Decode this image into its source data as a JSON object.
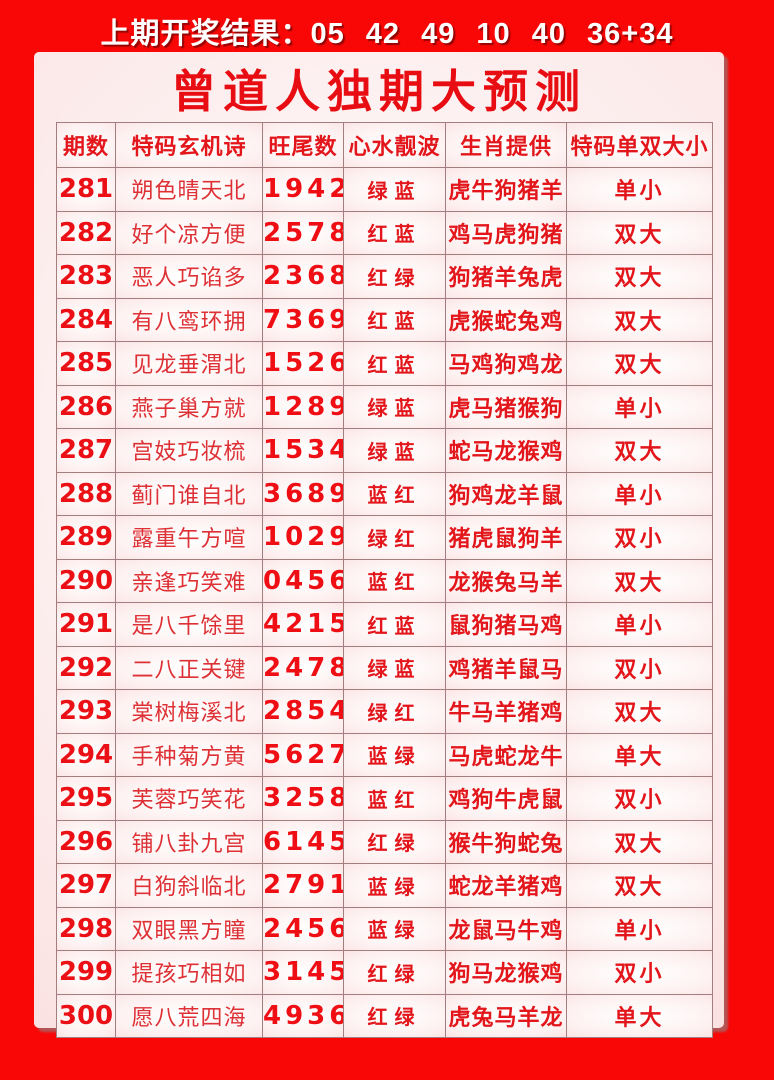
{
  "header": {
    "result_text": "上期开奖结果：05 42 49 10 40 36+34"
  },
  "panel": {
    "title": "曾道人独期大预测"
  },
  "colors": {
    "background_red": "#f90707",
    "text_red": "#e2161b",
    "panel_pink": "#f6d3d3",
    "header_text_white": "#ffffff",
    "table_border": "#a27e7e"
  },
  "table": {
    "columns": [
      "期数",
      "特码玄机诗",
      "旺尾数",
      "心水靓波",
      "生肖提供",
      "特码单双大小"
    ],
    "rows": [
      {
        "period": "281",
        "poem": "朔色晴天北",
        "tails": "1942",
        "waves": "绿蓝",
        "zodiac": "虎牛狗猪羊",
        "size": "单小"
      },
      {
        "period": "282",
        "poem": "好个凉方便",
        "tails": "2578",
        "waves": "红蓝",
        "zodiac": "鸡马虎狗猪",
        "size": "双大"
      },
      {
        "period": "283",
        "poem": "恶人巧谄多",
        "tails": "2368",
        "waves": "红绿",
        "zodiac": "狗猪羊兔虎",
        "size": "双大"
      },
      {
        "period": "284",
        "poem": "有八鸾环拥",
        "tails": "7369",
        "waves": "红蓝",
        "zodiac": "虎猴蛇兔鸡",
        "size": "双大"
      },
      {
        "period": "285",
        "poem": "见龙垂渭北",
        "tails": "1526",
        "waves": "红蓝",
        "zodiac": "马鸡狗鸡龙",
        "size": "双大"
      },
      {
        "period": "286",
        "poem": "燕子巢方就",
        "tails": "1289",
        "waves": "绿蓝",
        "zodiac": "虎马猪猴狗",
        "size": "单小"
      },
      {
        "period": "287",
        "poem": "宫妓巧妆梳",
        "tails": "1534",
        "waves": "绿蓝",
        "zodiac": "蛇马龙猴鸡",
        "size": "双大"
      },
      {
        "period": "288",
        "poem": "蓟门谁自北",
        "tails": "3689",
        "waves": "蓝红",
        "zodiac": "狗鸡龙羊鼠",
        "size": "单小"
      },
      {
        "period": "289",
        "poem": "露重午方喧",
        "tails": "1029",
        "waves": "绿红",
        "zodiac": "猪虎鼠狗羊",
        "size": "双小"
      },
      {
        "period": "290",
        "poem": "亲逢巧笑难",
        "tails": "0456",
        "waves": "蓝红",
        "zodiac": "龙猴兔马羊",
        "size": "双大"
      },
      {
        "period": "291",
        "poem": "是八千馀里",
        "tails": "4215",
        "waves": "红蓝",
        "zodiac": "鼠狗猪马鸡",
        "size": "单小"
      },
      {
        "period": "292",
        "poem": "二八正关键",
        "tails": "2478",
        "waves": "绿蓝",
        "zodiac": "鸡猪羊鼠马",
        "size": "双小"
      },
      {
        "period": "293",
        "poem": "棠树梅溪北",
        "tails": "2854",
        "waves": "绿红",
        "zodiac": "牛马羊猪鸡",
        "size": "双大"
      },
      {
        "period": "294",
        "poem": "手种菊方黄",
        "tails": "5627",
        "waves": "蓝绿",
        "zodiac": "马虎蛇龙牛",
        "size": "单大"
      },
      {
        "period": "295",
        "poem": "芙蓉巧笑花",
        "tails": "3258",
        "waves": "蓝红",
        "zodiac": "鸡狗牛虎鼠",
        "size": "双小"
      },
      {
        "period": "296",
        "poem": "铺八卦九宫",
        "tails": "6145",
        "waves": "红绿",
        "zodiac": "猴牛狗蛇兔",
        "size": "双大"
      },
      {
        "period": "297",
        "poem": "白狗斜临北",
        "tails": "2791",
        "waves": "蓝绿",
        "zodiac": "蛇龙羊猪鸡",
        "size": "双大"
      },
      {
        "period": "298",
        "poem": "双眼黑方瞳",
        "tails": "2456",
        "waves": "蓝绿",
        "zodiac": "龙鼠马牛鸡",
        "size": "单小"
      },
      {
        "period": "299",
        "poem": "提孩巧相如",
        "tails": "3145",
        "waves": "红绿",
        "zodiac": "狗马龙猴鸡",
        "size": "双小"
      },
      {
        "period": "300",
        "poem": "愿八荒四海",
        "tails": "4936",
        "waves": "红绿",
        "zodiac": "虎兔马羊龙",
        "size": "单大"
      }
    ]
  }
}
